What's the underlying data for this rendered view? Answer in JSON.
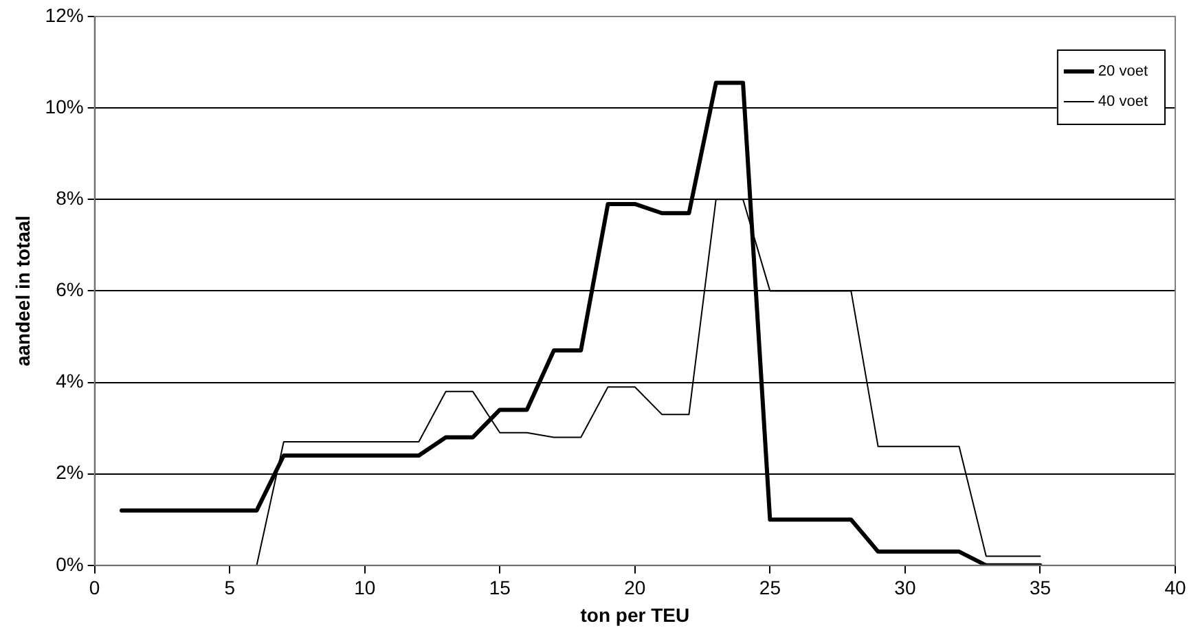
{
  "chart_data": {
    "type": "line",
    "xlabel": "ton per TEU",
    "ylabel": "aandeel in totaal",
    "x": [
      1,
      2,
      3,
      4,
      5,
      6,
      7,
      8,
      9,
      10,
      11,
      12,
      13,
      14,
      15,
      16,
      17,
      18,
      19,
      20,
      21,
      22,
      23,
      24,
      25,
      26,
      27,
      28,
      29,
      30,
      31,
      32,
      33,
      34,
      35
    ],
    "series": [
      {
        "name": "20 voet",
        "color": "#000000",
        "values": [
          1.2,
          1.2,
          1.2,
          1.2,
          1.2,
          1.2,
          2.4,
          2.4,
          2.4,
          2.4,
          2.4,
          2.4,
          2.8,
          2.8,
          3.4,
          3.4,
          4.7,
          4.7,
          7.9,
          7.9,
          7.7,
          7.7,
          10.55,
          10.55,
          1.0,
          1.0,
          1.0,
          1.0,
          0.3,
          0.3,
          0.3,
          0.3,
          0,
          0,
          0
        ]
      },
      {
        "name": "40 voet",
        "color": "#000000",
        "values": [
          null,
          null,
          null,
          null,
          null,
          0,
          2.7,
          2.7,
          2.7,
          2.7,
          2.7,
          2.7,
          3.8,
          3.8,
          2.9,
          2.9,
          2.8,
          2.8,
          3.9,
          3.9,
          3.3,
          3.3,
          8.0,
          8.0,
          6.0,
          6.0,
          6.0,
          6.0,
          2.6,
          2.6,
          2.6,
          2.6,
          0.2,
          0.2,
          0.2
        ]
      }
    ],
    "xlim": [
      0,
      40
    ],
    "xticks": [
      0,
      5,
      10,
      15,
      20,
      25,
      30,
      35,
      40
    ],
    "ylim": [
      0,
      12
    ],
    "yticks": [
      {
        "value": 0,
        "label": "0%"
      },
      {
        "value": 2,
        "label": "2%"
      },
      {
        "value": 4,
        "label": "4%"
      },
      {
        "value": 6,
        "label": "6%"
      },
      {
        "value": 8,
        "label": "8%"
      },
      {
        "value": 10,
        "label": "10%"
      },
      {
        "value": 12,
        "label": "12%"
      }
    ],
    "grid": "y",
    "legend": "top right",
    "marker": "none",
    "line_style": "solid"
  }
}
